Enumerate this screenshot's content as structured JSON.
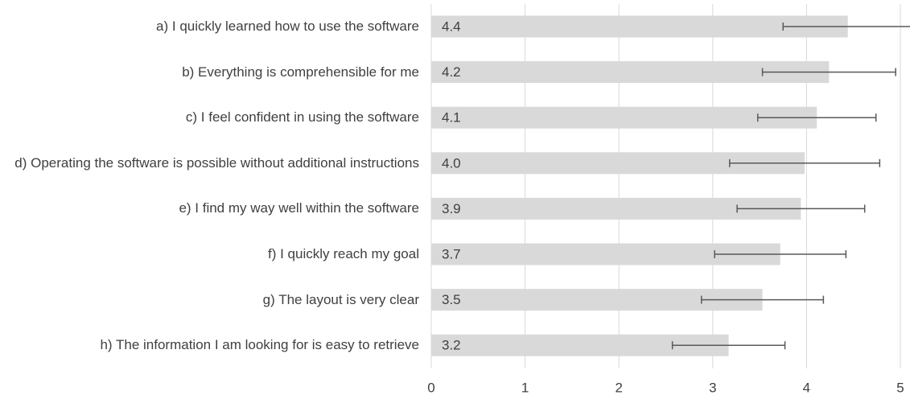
{
  "chart_data": {
    "type": "bar",
    "orientation": "horizontal",
    "categories": [
      "a) I quickly learned how to use the software",
      "b) Everything is comprehensible for me",
      "c) I feel confident in using the software",
      "d) Operating the software is possible without additional instructions",
      "e) I find my way well within the software",
      "f) I quickly reach my goal",
      "g) The layout is very clear",
      "h) The information I am looking for is easy to retrieve"
    ],
    "values": [
      4.44,
      4.24,
      4.11,
      3.98,
      3.94,
      3.72,
      3.53,
      3.17
    ],
    "value_labels": [
      "4.4",
      "4.2",
      "4.1",
      "4.0",
      "3.9",
      "3.7",
      "3.5",
      "3.2"
    ],
    "errors": [
      0.69,
      0.71,
      0.63,
      0.8,
      0.68,
      0.7,
      0.65,
      0.6
    ],
    "color": "#d9d9d9",
    "error_color": "#595959",
    "xlim": [
      0,
      5
    ],
    "xticks": [
      0,
      1,
      2,
      3,
      4,
      5
    ],
    "grid": true
  }
}
